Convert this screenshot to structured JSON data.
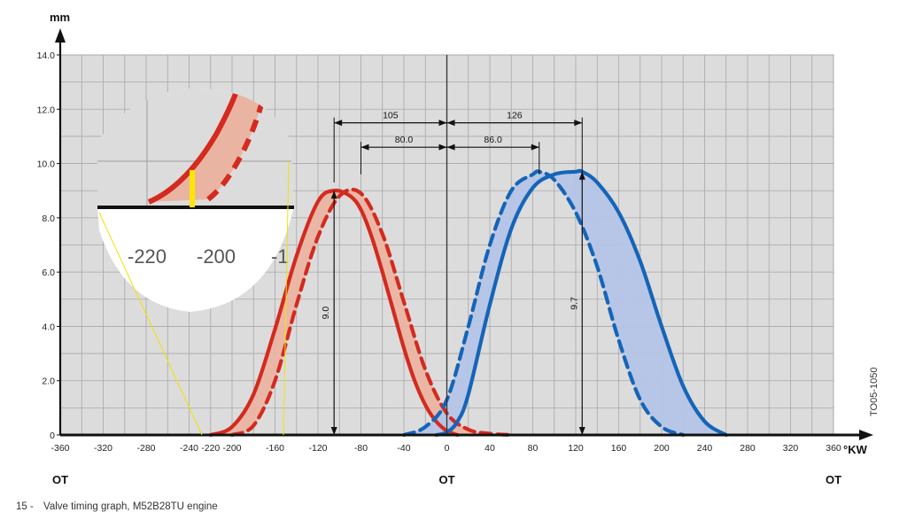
{
  "caption": {
    "number": "15 -",
    "text": "Valve timing graph, M52B28TU engine"
  },
  "reference_code": "TO05-1050",
  "colors": {
    "intake": "#d42a1f",
    "exhaust": "#1565b8",
    "intake_fill": "#eab4a2",
    "exhaust_fill": "#b4c4e6",
    "plot_bg": "#dcdcdc",
    "grid": "#a8a8a8",
    "zoom_marker": "#ffe600"
  },
  "chart_data": {
    "type": "line",
    "title": "",
    "xlabel": "°KW",
    "ylabel": "mm",
    "xlim": [
      -360,
      360
    ],
    "ylim": [
      0,
      14
    ],
    "grid": true,
    "x_ticks": [
      -360,
      -320,
      -280,
      -240,
      -220,
      -200,
      -160,
      -120,
      -80,
      -40,
      0,
      40,
      80,
      120,
      160,
      200,
      240,
      280,
      320,
      360
    ],
    "x_tick_labels": [
      "-360",
      "-320",
      "-280",
      "-240",
      "-220",
      "-200",
      "-160",
      "-120",
      "-80",
      "-40",
      "0",
      "40",
      "80",
      "120",
      "160",
      "200",
      "240",
      "280",
      "320",
      "360"
    ],
    "y_ticks": [
      0,
      2,
      4,
      6,
      8,
      10,
      12,
      14
    ],
    "y_tick_labels": [
      "0",
      "2.0",
      "4.0",
      "6.0",
      "8.0",
      "10.0",
      "12.0",
      "14.0"
    ],
    "axis_markers": [
      {
        "x": -360,
        "label": "OT"
      },
      {
        "x": 0,
        "label": "OT"
      },
      {
        "x": 360,
        "label": "OT"
      }
    ],
    "series": [
      {
        "role": "intake-solid",
        "x": [
          -220,
          -200,
          -180,
          -160,
          -140,
          -120,
          -105,
          -90,
          -80,
          -70,
          -60,
          -50,
          -40,
          -30,
          -20,
          -10,
          0,
          10
        ],
        "y": [
          0.0,
          0.3,
          1.5,
          3.9,
          6.6,
          8.6,
          9.0,
          8.8,
          8.3,
          7.3,
          6.0,
          4.6,
          3.2,
          2.0,
          1.1,
          0.5,
          0.15,
          0.0
        ]
      },
      {
        "role": "intake-dashed",
        "x": [
          -200,
          -180,
          -160,
          -140,
          -120,
          -100,
          -80,
          -60,
          -40,
          -20,
          0,
          20,
          40,
          60
        ],
        "y": [
          0.0,
          0.35,
          2.0,
          4.8,
          7.3,
          8.8,
          8.9,
          7.4,
          4.9,
          2.4,
          0.8,
          0.2,
          0.05,
          0.0
        ]
      },
      {
        "role": "exhaust-dashed",
        "x": [
          -40,
          -20,
          0,
          20,
          40,
          60,
          80,
          86,
          100,
          120,
          140,
          160,
          180,
          200,
          220
        ],
        "y": [
          0.0,
          0.3,
          1.3,
          4.0,
          7.0,
          9.0,
          9.6,
          9.7,
          9.4,
          8.2,
          6.2,
          3.5,
          1.3,
          0.3,
          0.0
        ]
      },
      {
        "role": "exhaust-solid",
        "x": [
          -10,
          0,
          10,
          20,
          40,
          60,
          80,
          100,
          120,
          126,
          140,
          160,
          180,
          200,
          220,
          240,
          260
        ],
        "y": [
          0.0,
          0.1,
          0.5,
          1.5,
          4.8,
          7.6,
          9.1,
          9.6,
          9.7,
          9.7,
          9.3,
          8.2,
          6.4,
          4.0,
          1.8,
          0.5,
          0.0
        ]
      }
    ],
    "dimensions": [
      {
        "label": "105",
        "from": -105,
        "to": 0,
        "y": 11.5
      },
      {
        "label": "80.0",
        "from": -80,
        "to": 0,
        "y": 10.6
      },
      {
        "label": "126",
        "from": 0,
        "to": 126,
        "y": 11.5
      },
      {
        "label": "86.0",
        "from": 0,
        "to": 86,
        "y": 10.6
      },
      {
        "label": "9.0",
        "x": -105,
        "from": 0,
        "to": 9.0
      },
      {
        "label": "9.7",
        "x": 126,
        "from": 0,
        "to": 9.7
      }
    ],
    "zoom_inset": {
      "x_labels": [
        "-220",
        "-200",
        "-1"
      ]
    }
  }
}
